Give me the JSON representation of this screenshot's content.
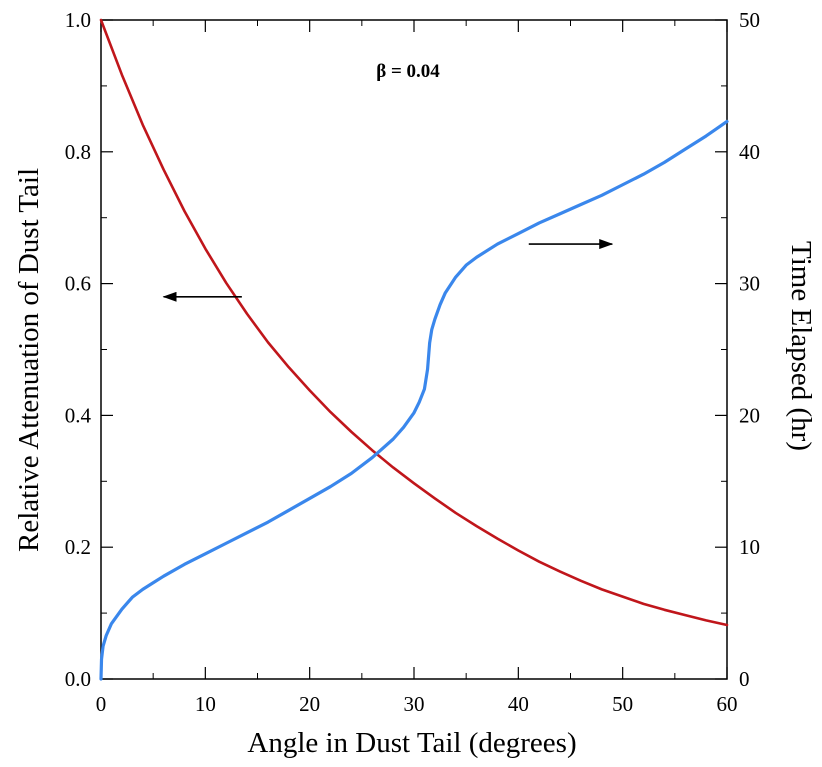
{
  "chart_data": {
    "type": "line",
    "title": "",
    "annotation": "β = 0.04",
    "xlabel": "Angle in Dust Tail (degrees)",
    "ylabel_left": "Relative Attenuation of Dust Tail",
    "ylabel_right": "Time Elapsed (hr)",
    "xlim": [
      0,
      60
    ],
    "ylim_left": [
      0.0,
      1.0
    ],
    "ylim_right": [
      0,
      50
    ],
    "x_ticks": [
      "0",
      "10",
      "20",
      "30",
      "40",
      "50",
      "60"
    ],
    "y_left_ticks": [
      "0.0",
      "0.2",
      "0.4",
      "0.6",
      "0.8",
      "1.0"
    ],
    "y_right_ticks": [
      "0",
      "10",
      "20",
      "30",
      "40",
      "50"
    ],
    "grid": false,
    "series": [
      {
        "name": "Relative Attenuation",
        "axis": "left",
        "color": "#c0161b",
        "x": [
          0,
          2,
          4,
          6,
          8,
          10,
          12,
          14,
          16,
          18,
          20,
          22,
          24,
          26,
          28,
          30,
          32,
          34,
          36,
          38,
          40,
          42,
          44,
          46,
          48,
          50,
          52,
          54,
          56,
          58,
          60
        ],
        "y": [
          1.0,
          0.917,
          0.841,
          0.773,
          0.71,
          0.653,
          0.601,
          0.554,
          0.511,
          0.473,
          0.438,
          0.405,
          0.375,
          0.347,
          0.321,
          0.297,
          0.274,
          0.252,
          0.232,
          0.213,
          0.195,
          0.178,
          0.163,
          0.149,
          0.136,
          0.125,
          0.114,
          0.105,
          0.097,
          0.089,
          0.082
        ]
      },
      {
        "name": "Time Elapsed",
        "axis": "right",
        "color": "#3a87ec",
        "x": [
          0,
          0.05,
          0.2,
          0.5,
          1,
          2,
          3,
          4,
          5,
          6,
          8,
          10,
          12,
          14,
          16,
          18,
          20,
          22,
          24,
          26,
          28,
          29,
          30,
          30.5,
          31,
          31.3,
          31.5,
          31.7,
          32,
          32.5,
          33,
          34,
          35,
          36,
          38,
          40,
          42,
          44,
          46,
          48,
          50,
          52,
          54,
          56,
          58,
          60
        ],
        "y": [
          0,
          1.5,
          2.5,
          3.3,
          4.2,
          5.3,
          6.2,
          6.8,
          7.3,
          7.8,
          8.7,
          9.5,
          10.3,
          11.1,
          11.9,
          12.8,
          13.7,
          14.6,
          15.6,
          16.8,
          18.2,
          19.1,
          20.2,
          21.0,
          22.0,
          23.5,
          25.5,
          26.5,
          27.3,
          28.4,
          29.3,
          30.5,
          31.4,
          32.0,
          33.0,
          33.8,
          34.6,
          35.3,
          36.0,
          36.7,
          37.5,
          38.3,
          39.2,
          40.2,
          41.2,
          42.3
        ]
      }
    ],
    "arrows": [
      {
        "label": "pointer to left axis",
        "direction": "left",
        "x_from": 13.5,
        "x_to": 6,
        "y_left": 0.58
      },
      {
        "label": "pointer to right axis",
        "direction": "right",
        "x_from": 41,
        "x_to": 49,
        "y_left": 0.66
      }
    ]
  }
}
